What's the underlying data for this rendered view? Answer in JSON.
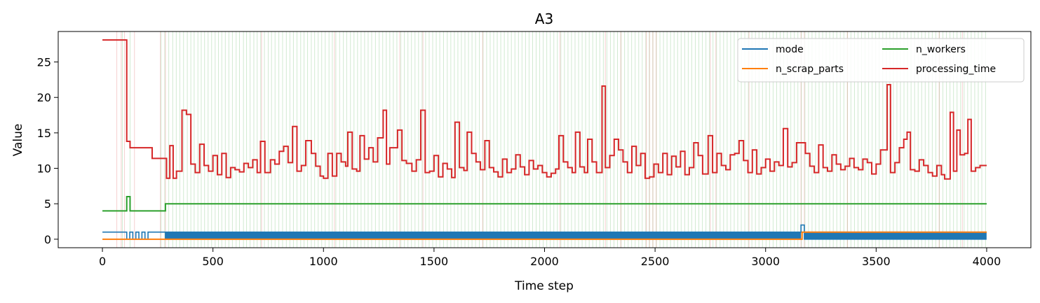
{
  "chart_data": {
    "type": "line",
    "title": "A3",
    "xlabel": "Time step",
    "ylabel": "Value",
    "xlim": [
      -200,
      4200
    ],
    "ylim": [
      -1.2,
      29.3
    ],
    "xticks": [
      0,
      500,
      1000,
      1500,
      2000,
      2500,
      3000,
      3500,
      4000
    ],
    "yticks": [
      0,
      5,
      10,
      15,
      20,
      25
    ],
    "grid": false,
    "legend_position": "top-right",
    "colors": {
      "mode": "#1f77b4",
      "n_scrap_parts": "#ff7f0e",
      "n_workers": "#2ca02c",
      "processing_time": "#d62728",
      "event_green": "#2ca02c",
      "event_red": "#d62728"
    },
    "series": [
      {
        "name": "mode",
        "kind": "alternating",
        "x_start": 0,
        "x_end": 4000,
        "segments": [
          {
            "x": [
              0,
              110
            ],
            "value": 1
          },
          {
            "x": [
              110,
              220
            ],
            "value": 0,
            "toggle_to": 1,
            "toggles": 4
          },
          {
            "x": [
              220,
              285
            ],
            "value": 1
          },
          {
            "x": [
              285,
              3160
            ],
            "toggle_low": 0,
            "toggle_high": 1,
            "toggles": 470
          },
          {
            "x": [
              3160,
              3175
            ],
            "value": 2
          },
          {
            "x": [
              3175,
              4000
            ],
            "toggle_low": 0,
            "toggle_high": 1,
            "toggles": 140
          }
        ]
      },
      {
        "name": "n_scrap_parts",
        "kind": "step",
        "points": [
          [
            0,
            0
          ],
          [
            3150,
            0
          ],
          [
            3165,
            1
          ],
          [
            4000,
            1
          ]
        ]
      },
      {
        "name": "n_workers",
        "kind": "step",
        "points": [
          [
            0,
            4
          ],
          [
            110,
            4
          ],
          [
            110,
            6
          ],
          [
            125,
            6
          ],
          [
            125,
            4
          ],
          [
            285,
            4
          ],
          [
            285,
            5
          ],
          [
            4000,
            5
          ]
        ]
      },
      {
        "name": "processing_time",
        "kind": "step",
        "points": [
          [
            0,
            28.1
          ],
          [
            105,
            28.1
          ],
          [
            110,
            13.8
          ],
          [
            125,
            12.9
          ],
          [
            225,
            11.4
          ],
          [
            290,
            8.6
          ],
          [
            305,
            13.2
          ],
          [
            320,
            8.6
          ],
          [
            335,
            9.6
          ],
          [
            360,
            18.2
          ],
          [
            380,
            17.6
          ],
          [
            400,
            10.6
          ],
          [
            420,
            9.4
          ],
          [
            440,
            13.4
          ],
          [
            460,
            10.4
          ],
          [
            480,
            9.6
          ],
          [
            500,
            11.8
          ],
          [
            520,
            9.1
          ],
          [
            540,
            12.1
          ],
          [
            560,
            8.7
          ],
          [
            580,
            10.1
          ],
          [
            600,
            9.8
          ],
          [
            620,
            9.5
          ],
          [
            640,
            10.7
          ],
          [
            660,
            10.1
          ],
          [
            680,
            11.2
          ],
          [
            700,
            9.4
          ],
          [
            715,
            13.8
          ],
          [
            735,
            9.4
          ],
          [
            760,
            11.2
          ],
          [
            780,
            10.6
          ],
          [
            800,
            12.4
          ],
          [
            820,
            13.1
          ],
          [
            840,
            10.8
          ],
          [
            860,
            15.9
          ],
          [
            880,
            9.6
          ],
          [
            900,
            10.4
          ],
          [
            920,
            13.9
          ],
          [
            945,
            12.1
          ],
          [
            965,
            10.3
          ],
          [
            985,
            8.9
          ],
          [
            1000,
            8.6
          ],
          [
            1020,
            12.1
          ],
          [
            1040,
            8.9
          ],
          [
            1060,
            12.1
          ],
          [
            1080,
            10.9
          ],
          [
            1100,
            10.3
          ],
          [
            1110,
            15.1
          ],
          [
            1130,
            9.9
          ],
          [
            1150,
            9.6
          ],
          [
            1165,
            14.6
          ],
          [
            1185,
            11.3
          ],
          [
            1205,
            12.9
          ],
          [
            1225,
            10.9
          ],
          [
            1245,
            14.3
          ],
          [
            1270,
            18.2
          ],
          [
            1285,
            10.6
          ],
          [
            1300,
            12.9
          ],
          [
            1320,
            12.9
          ],
          [
            1335,
            15.4
          ],
          [
            1355,
            11.1
          ],
          [
            1375,
            10.7
          ],
          [
            1400,
            9.6
          ],
          [
            1420,
            11.2
          ],
          [
            1440,
            18.2
          ],
          [
            1460,
            9.4
          ],
          [
            1480,
            9.6
          ],
          [
            1500,
            11.8
          ],
          [
            1520,
            8.8
          ],
          [
            1540,
            10.7
          ],
          [
            1560,
            9.9
          ],
          [
            1580,
            8.7
          ],
          [
            1595,
            16.5
          ],
          [
            1615,
            10.1
          ],
          [
            1635,
            9.7
          ],
          [
            1650,
            15.1
          ],
          [
            1670,
            12.1
          ],
          [
            1690,
            10.9
          ],
          [
            1710,
            9.8
          ],
          [
            1730,
            13.9
          ],
          [
            1750,
            10.1
          ],
          [
            1770,
            9.5
          ],
          [
            1790,
            8.8
          ],
          [
            1810,
            11.3
          ],
          [
            1830,
            9.4
          ],
          [
            1850,
            9.9
          ],
          [
            1870,
            11.9
          ],
          [
            1890,
            10.2
          ],
          [
            1910,
            9.1
          ],
          [
            1930,
            11.1
          ],
          [
            1950,
            9.9
          ],
          [
            1970,
            10.4
          ],
          [
            1990,
            9.4
          ],
          [
            2010,
            8.8
          ],
          [
            2030,
            9.3
          ],
          [
            2050,
            9.9
          ],
          [
            2065,
            14.6
          ],
          [
            2085,
            10.9
          ],
          [
            2105,
            10.1
          ],
          [
            2125,
            9.4
          ],
          [
            2140,
            15.1
          ],
          [
            2160,
            10.2
          ],
          [
            2180,
            9.4
          ],
          [
            2195,
            14.1
          ],
          [
            2215,
            10.9
          ],
          [
            2235,
            9.4
          ],
          [
            2260,
            21.6
          ],
          [
            2275,
            10.1
          ],
          [
            2295,
            11.8
          ],
          [
            2315,
            14.1
          ],
          [
            2335,
            12.6
          ],
          [
            2355,
            10.9
          ],
          [
            2375,
            9.4
          ],
          [
            2395,
            13.1
          ],
          [
            2415,
            10.4
          ],
          [
            2435,
            12.1
          ],
          [
            2455,
            8.6
          ],
          [
            2475,
            8.8
          ],
          [
            2495,
            10.6
          ],
          [
            2515,
            9.4
          ],
          [
            2535,
            12.1
          ],
          [
            2555,
            9.1
          ],
          [
            2575,
            11.7
          ],
          [
            2595,
            10.2
          ],
          [
            2615,
            12.4
          ],
          [
            2635,
            9.1
          ],
          [
            2655,
            10.1
          ],
          [
            2675,
            13.6
          ],
          [
            2695,
            11.8
          ],
          [
            2715,
            9.2
          ],
          [
            2740,
            14.6
          ],
          [
            2760,
            9.4
          ],
          [
            2780,
            12.1
          ],
          [
            2800,
            10.4
          ],
          [
            2820,
            9.8
          ],
          [
            2840,
            11.9
          ],
          [
            2860,
            12.1
          ],
          [
            2880,
            13.9
          ],
          [
            2900,
            11.1
          ],
          [
            2920,
            9.4
          ],
          [
            2940,
            12.6
          ],
          [
            2960,
            9.2
          ],
          [
            2980,
            10.1
          ],
          [
            3000,
            11.3
          ],
          [
            3020,
            9.6
          ],
          [
            3040,
            10.9
          ],
          [
            3060,
            10.4
          ],
          [
            3080,
            15.6
          ],
          [
            3100,
            10.2
          ],
          [
            3120,
            10.8
          ],
          [
            3140,
            13.6
          ],
          [
            3160,
            13.6
          ],
          [
            3180,
            12.1
          ],
          [
            3200,
            10.3
          ],
          [
            3220,
            9.4
          ],
          [
            3240,
            13.3
          ],
          [
            3260,
            10.1
          ],
          [
            3280,
            9.6
          ],
          [
            3300,
            11.9
          ],
          [
            3320,
            10.6
          ],
          [
            3340,
            9.8
          ],
          [
            3360,
            10.3
          ],
          [
            3380,
            11.4
          ],
          [
            3400,
            10.1
          ],
          [
            3420,
            9.8
          ],
          [
            3440,
            11.3
          ],
          [
            3460,
            10.8
          ],
          [
            3480,
            9.2
          ],
          [
            3500,
            10.6
          ],
          [
            3520,
            12.6
          ],
          [
            3550,
            21.8
          ],
          [
            3565,
            9.4
          ],
          [
            3585,
            10.8
          ],
          [
            3605,
            12.9
          ],
          [
            3625,
            14.1
          ],
          [
            3640,
            15.1
          ],
          [
            3655,
            9.8
          ],
          [
            3675,
            9.6
          ],
          [
            3695,
            11.2
          ],
          [
            3715,
            10.4
          ],
          [
            3735,
            9.4
          ],
          [
            3755,
            8.9
          ],
          [
            3775,
            10.4
          ],
          [
            3795,
            9.1
          ],
          [
            3810,
            8.5
          ],
          [
            3835,
            17.9
          ],
          [
            3850,
            9.6
          ],
          [
            3865,
            15.4
          ],
          [
            3880,
            11.9
          ],
          [
            3900,
            12.1
          ],
          [
            3915,
            16.9
          ],
          [
            3930,
            9.6
          ],
          [
            3950,
            10.1
          ],
          [
            3970,
            10.4
          ],
          [
            4000,
            10.4
          ]
        ]
      }
    ],
    "event_lines": {
      "green_x": [
        90,
        125,
        265,
        282,
        300,
        318,
        334,
        350,
        367,
        384,
        400,
        415,
        432,
        447,
        462,
        478,
        494,
        510,
        525,
        540,
        556,
        572,
        588,
        605,
        620,
        638,
        652,
        668,
        685,
        700,
        716,
        733,
        750,
        765,
        781,
        798,
        815,
        832,
        848,
        864,
        880,
        897,
        912,
        928,
        945,
        960,
        976,
        992,
        1008,
        1025,
        1040,
        1056,
        1073,
        1090,
        1105,
        1122,
        1138,
        1154,
        1170,
        1186,
        1202,
        1218,
        1235,
        1252,
        1268,
        1284,
        1300,
        1316,
        1332,
        1350,
        1366,
        1382,
        1398,
        1414,
        1430,
        1446,
        1462,
        1478,
        1494,
        1510,
        1526,
        1543,
        1560,
        1576,
        1592,
        1608,
        1624,
        1640,
        1656,
        1672,
        1688,
        1705,
        1722,
        1738,
        1754,
        1770,
        1786,
        1802,
        1818,
        1834,
        1850,
        1866,
        1882,
        1898,
        1914,
        1930,
        1946,
        1962,
        1978,
        1994,
        2010,
        2026,
        2042,
        2058,
        2074,
        2090,
        2106,
        2122,
        2138,
        2154,
        2170,
        2186,
        2202,
        2218,
        2234,
        2250,
        2266,
        2282,
        2298,
        2314,
        2330,
        2346,
        2362,
        2378,
        2394,
        2410,
        2426,
        2442,
        2458,
        2474,
        2490,
        2506,
        2522,
        2538,
        2554,
        2570,
        2586,
        2602,
        2618,
        2634,
        2650,
        2666,
        2682,
        2698,
        2714,
        2730,
        2746,
        2762,
        2778,
        2794,
        2810,
        2826,
        2842,
        2858,
        2874,
        2890,
        2906,
        2922,
        2938,
        2954,
        2970,
        2986,
        3002,
        3018,
        3034,
        3050,
        3066,
        3082,
        3098,
        3114,
        3130,
        3146,
        3162,
        3178,
        3194,
        3210,
        3226,
        3242,
        3258,
        3274,
        3290,
        3306,
        3322,
        3338,
        3354,
        3370,
        3386,
        3402,
        3418,
        3434,
        3450,
        3466,
        3482,
        3498,
        3514,
        3530,
        3546,
        3562,
        3578,
        3594,
        3610,
        3626,
        3642,
        3658,
        3674,
        3690,
        3706,
        3722,
        3738,
        3754,
        3770,
        3786,
        3802,
        3818,
        3834,
        3850,
        3866,
        3882,
        3898,
        3914,
        3930,
        3946,
        3962,
        3978,
        3995
      ],
      "red_x": [
        65,
        85,
        100,
        145,
        262,
        285,
        720,
        1050,
        1345,
        1450,
        1720,
        2070,
        2275,
        2345,
        2460,
        2475,
        2490,
        2505,
        2750,
        2775,
        2925,
        3160,
        3175,
        3370,
        3785,
        3890
      ]
    }
  }
}
